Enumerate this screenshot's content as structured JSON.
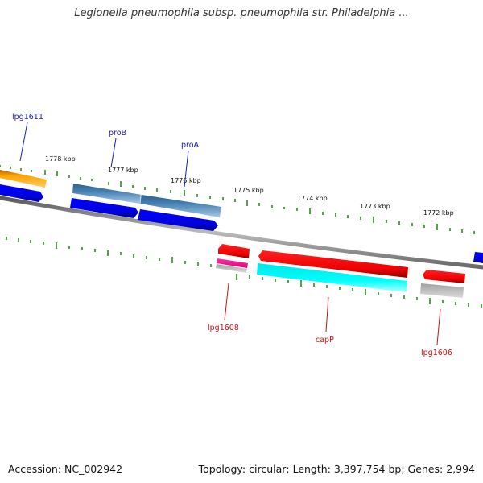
{
  "title": "Legionella pneumophila subsp. pneumophila str. Philadelphia ...",
  "footer": {
    "accession": "Accession: NC_002942",
    "topology": "Topology: circular; Length: 3,397,754 bp; Genes: 2,994"
  },
  "scale_labels": [
    "1778 kbp",
    "1777 kbp",
    "1776 kbp",
    "1775 kbp",
    "1774 kbp",
    "1773 kbp",
    "1772 kbp"
  ],
  "gene_labels": {
    "forward": [
      "lpg1611",
      "proB",
      "proA"
    ],
    "reverse": [
      "lpg1608",
      "capP",
      "lpg1606"
    ]
  },
  "colors": {
    "forward_label": "#1a1aaa",
    "reverse_label": "#cc1111",
    "tick": "#2e8b22",
    "backbone": "#777777"
  }
}
